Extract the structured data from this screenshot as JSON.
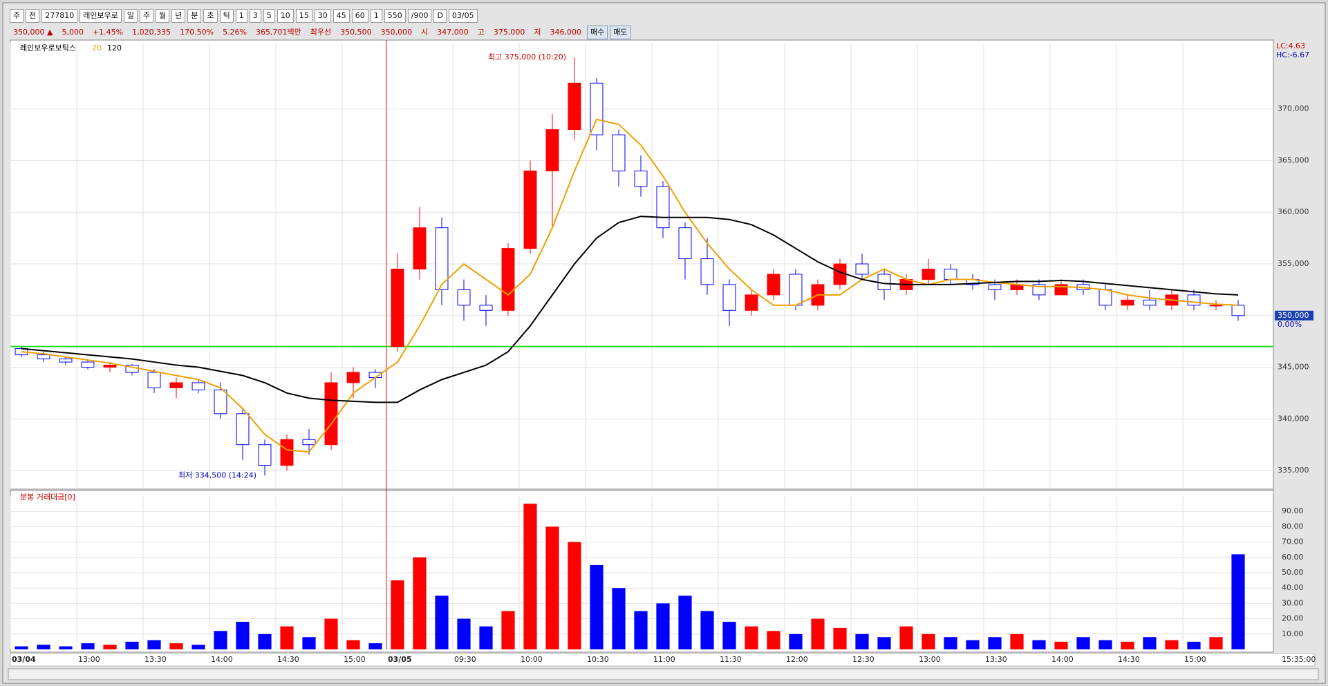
{
  "toolbar": {
    "row1": [
      "주",
      "전",
      "277810",
      "레인보우로",
      "일",
      "주",
      "월",
      "년",
      "분",
      "초",
      "틱",
      "1",
      "3",
      "5",
      "10",
      "15",
      "30",
      "45",
      "60",
      "1",
      "550",
      "/900",
      "D",
      "03/05"
    ],
    "row2": [
      "350,000 ▲",
      "5,000",
      "+1.45%",
      "1,020,335",
      "170.50%",
      "5.26%",
      "365,701백만",
      "최우선",
      "350,500",
      "350,000",
      "시",
      "347,000",
      "고",
      "375,000",
      "저",
      "346,000"
    ],
    "buttons": [
      "매수",
      "매도"
    ]
  },
  "chart_data": [
    {
      "type": "candlestick",
      "title": "레인보우로보틱스",
      "categories": [
        "03/04",
        null,
        null,
        "13:00",
        null,
        null,
        "13:30",
        null,
        null,
        "14:00",
        null,
        null,
        "14:30",
        null,
        null,
        "15:00",
        null,
        "03/05",
        null,
        null,
        "09:30",
        null,
        null,
        "10:00",
        null,
        null,
        "10:30",
        null,
        null,
        "11:00",
        null,
        null,
        "11:30",
        null,
        null,
        "12:00",
        null,
        null,
        "12:30",
        null,
        null,
        "13:00",
        null,
        null,
        "13:30",
        null,
        null,
        "14:00",
        null,
        null,
        "14:30",
        null,
        null,
        "15:00",
        null,
        null
      ],
      "open": [
        346800,
        346200,
        345800,
        345500,
        345000,
        345200,
        344500,
        343000,
        343500,
        342800,
        340500,
        337500,
        335500,
        338000,
        337500,
        343500,
        344500,
        347000,
        354500,
        358500,
        352500,
        351000,
        350500,
        356500,
        364000,
        368000,
        372500,
        367500,
        364000,
        362500,
        358500,
        355500,
        353000,
        350500,
        352000,
        354000,
        351000,
        353000,
        355000,
        354000,
        352500,
        353500,
        354500,
        353500,
        353000,
        352500,
        353000,
        352000,
        353000,
        352500,
        351000,
        351500,
        351000,
        352000,
        351000,
        351000
      ],
      "high": [
        347000,
        346500,
        346000,
        345800,
        345500,
        345300,
        344800,
        344000,
        343800,
        343500,
        341000,
        338000,
        338500,
        339000,
        344500,
        345000,
        344800,
        356000,
        360500,
        359500,
        353500,
        352000,
        357000,
        365000,
        369500,
        375000,
        373000,
        368000,
        365500,
        363000,
        359000,
        357500,
        353500,
        352500,
        354500,
        354500,
        353500,
        355500,
        356000,
        354500,
        354000,
        355500,
        355000,
        354000,
        353500,
        353500,
        353500,
        353500,
        353500,
        353000,
        352000,
        352500,
        352500,
        352500,
        351500,
        351500
      ],
      "low": [
        346000,
        345500,
        345200,
        344800,
        344500,
        344200,
        342500,
        342000,
        342500,
        340000,
        336000,
        334500,
        335000,
        336500,
        337000,
        342000,
        343000,
        346500,
        353500,
        351000,
        349500,
        349000,
        350000,
        356000,
        358500,
        367000,
        366000,
        362500,
        361500,
        357500,
        353500,
        352000,
        349000,
        350000,
        351500,
        350500,
        350500,
        352500,
        353500,
        351500,
        352000,
        353000,
        353000,
        352500,
        351500,
        352000,
        351500,
        352000,
        352000,
        350500,
        350500,
        350500,
        350500,
        350500,
        350500,
        349500
      ],
      "close": [
        346200,
        345800,
        345500,
        345000,
        345200,
        344500,
        343000,
        343500,
        342800,
        340500,
        337500,
        335500,
        338000,
        337500,
        343500,
        344500,
        344000,
        354500,
        358500,
        352500,
        351000,
        350500,
        356500,
        364000,
        368000,
        372500,
        367500,
        364000,
        362500,
        358500,
        355500,
        353000,
        350500,
        352000,
        354000,
        351000,
        353000,
        355000,
        354000,
        352500,
        353500,
        354500,
        353500,
        353000,
        352500,
        353000,
        352000,
        353000,
        352500,
        351000,
        351500,
        351000,
        352000,
        351000,
        351000,
        350000
      ],
      "up_color": "#ff0000",
      "down_color": "#0000ff",
      "series": [
        {
          "name": "20",
          "color": "#f0a000",
          "values": [
            346500,
            346300,
            346000,
            345700,
            345400,
            345000,
            344600,
            344200,
            343800,
            343000,
            341000,
            338500,
            337000,
            336800,
            339500,
            342500,
            344000,
            345500,
            349000,
            353000,
            355000,
            353500,
            352000,
            354000,
            358500,
            364000,
            369000,
            368500,
            366500,
            363500,
            360000,
            357000,
            354500,
            352500,
            351000,
            351000,
            352000,
            352000,
            353500,
            354500,
            353500,
            353000,
            353500,
            353500,
            353200,
            353000,
            352800,
            352800,
            352700,
            352500,
            352000,
            351700,
            351500,
            351300,
            351100,
            351000
          ]
        },
        {
          "name": "120",
          "color": "#000000",
          "values": [
            346800,
            346600,
            346400,
            346200,
            346000,
            345800,
            345500,
            345200,
            345000,
            344600,
            344200,
            343500,
            342500,
            342000,
            341800,
            341700,
            341600,
            341600,
            342800,
            343800,
            344500,
            345200,
            346500,
            349000,
            352000,
            355000,
            357500,
            359000,
            359600,
            359500,
            359500,
            359500,
            359300,
            358800,
            357800,
            356500,
            355200,
            354200,
            353500,
            353100,
            353000,
            353000,
            353000,
            353100,
            353200,
            353300,
            353300,
            353400,
            353300,
            353100,
            352900,
            352700,
            352500,
            352300,
            352100,
            352000
          ]
        }
      ],
      "ylim": [
        333200,
        376400
      ],
      "yticks": [
        {
          "value": 335000,
          "label": "335,000"
        },
        {
          "value": 340000,
          "label": "340,000"
        },
        {
          "value": 345000,
          "label": "345,000"
        },
        {
          "value": 350000,
          "label": "350,000"
        },
        {
          "value": 355000,
          "label": "355,000"
        },
        {
          "value": 360000,
          "label": "360,000"
        },
        {
          "value": 365000,
          "label": "365,000"
        },
        {
          "value": 370000,
          "label": "370,000"
        }
      ],
      "grid": true,
      "reference_line": {
        "value": 347000,
        "color": "#22dd22"
      },
      "session_line_color": "#ff0000",
      "max_label": "최고 375,000 (10:20)",
      "min_label": "최저 334,500 (14:24)",
      "lc_label": "LC:4.63",
      "hc_label": "HC:-6.67",
      "last_label": "350,000",
      "change_label": "0.00%",
      "x_end_label": "15:35:00"
    },
    {
      "type": "bar",
      "title": "분봉 거래대금[0]",
      "values": [
        2,
        3,
        2,
        4,
        3,
        5,
        6,
        4,
        3,
        12,
        18,
        10,
        15,
        8,
        20,
        6,
        4,
        45,
        60,
        35,
        20,
        15,
        25,
        95,
        80,
        70,
        55,
        40,
        25,
        30,
        35,
        25,
        18,
        15,
        12,
        10,
        20,
        14,
        10,
        8,
        15,
        10,
        8,
        6,
        8,
        10,
        6,
        5,
        8,
        6,
        5,
        8,
        6,
        5,
        8,
        62
      ],
      "ylim": [
        0,
        100
      ],
      "yticks": [
        {
          "value": 10,
          "label": "10.00"
        },
        {
          "value": 20,
          "label": "20.00"
        },
        {
          "value": 30,
          "label": "30.00"
        },
        {
          "value": 40,
          "label": "40.00"
        },
        {
          "value": 50,
          "label": "50.00"
        },
        {
          "value": 60,
          "label": "60.00"
        },
        {
          "value": 70,
          "label": "70.00"
        },
        {
          "value": 80,
          "label": "80.00"
        },
        {
          "value": 90,
          "label": "90.00"
        }
      ],
      "grid": true
    }
  ]
}
